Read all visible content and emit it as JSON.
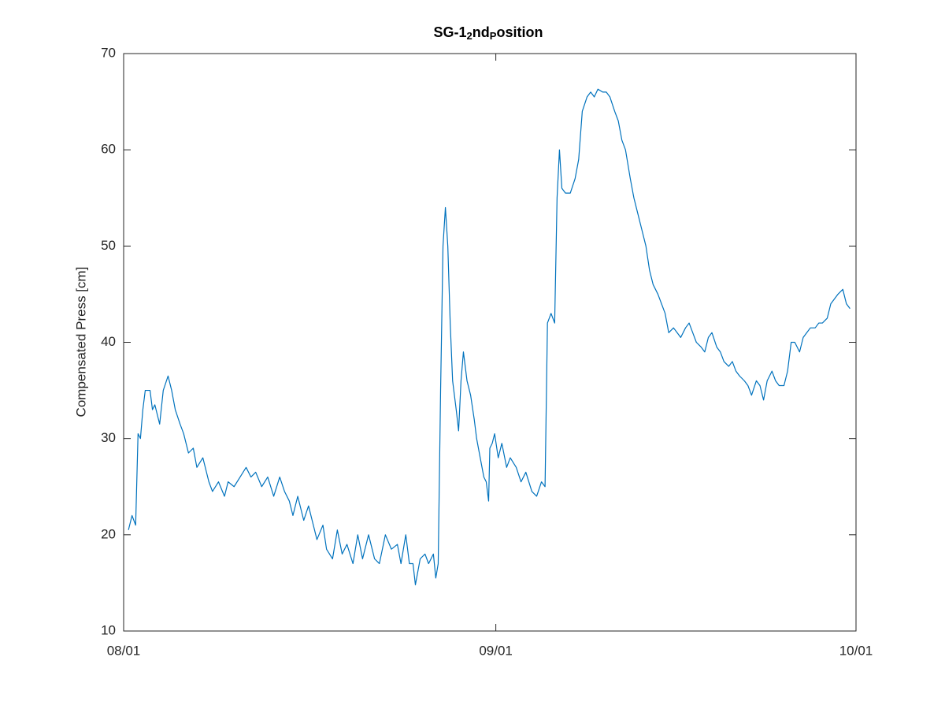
{
  "chart_data": {
    "type": "line",
    "title_parts": [
      {
        "text": "SG-1"
      },
      {
        "text": "2",
        "subscript": true
      },
      {
        "text": "nd"
      },
      {
        "text": "P",
        "subscript": true
      },
      {
        "text": "osition"
      }
    ],
    "y_label": "Compensated Press [cm]",
    "xlim": [
      0,
      61
    ],
    "xticks": [
      {
        "value": 0,
        "label": "08/01"
      },
      {
        "value": 31,
        "label": "09/01"
      },
      {
        "value": 61,
        "label": "10/01"
      }
    ],
    "ylim": [
      10,
      70
    ],
    "yticks": [
      10,
      20,
      30,
      40,
      50,
      60,
      70
    ],
    "grid": false,
    "series": [
      {
        "color": "#0072bd",
        "x": [
          0.4,
          0.7,
          1.0,
          1.2,
          1.4,
          1.6,
          1.8,
          2.2,
          2.4,
          2.6,
          3.0,
          3.3,
          3.7,
          4.0,
          4.3,
          4.7,
          5.0,
          5.4,
          5.8,
          6.1,
          6.6,
          7.1,
          7.4,
          7.9,
          8.4,
          8.7,
          9.2,
          9.7,
          10.2,
          10.6,
          11.0,
          11.5,
          12.0,
          12.5,
          13.0,
          13.4,
          13.8,
          14.1,
          14.5,
          15.0,
          15.4,
          15.8,
          16.1,
          16.6,
          16.9,
          17.4,
          17.8,
          18.2,
          18.6,
          19.1,
          19.5,
          19.9,
          20.4,
          20.9,
          21.3,
          21.8,
          22.3,
          22.8,
          23.1,
          23.5,
          23.8,
          24.1,
          24.3,
          24.7,
          25.1,
          25.4,
          25.8,
          26.0,
          26.2,
          26.4,
          26.6,
          26.8,
          27.0,
          27.2,
          27.4,
          27.7,
          27.9,
          28.1,
          28.3,
          28.6,
          28.9,
          29.2,
          29.4,
          29.7,
          30.0,
          30.2,
          30.4,
          30.5,
          30.7,
          30.9,
          31.2,
          31.5,
          31.9,
          32.2,
          32.7,
          33.1,
          33.5,
          34.0,
          34.4,
          34.8,
          35.1,
          35.3,
          35.6,
          35.9,
          36.1,
          36.3,
          36.5,
          36.8,
          37.2,
          37.6,
          37.9,
          38.2,
          38.6,
          38.9,
          39.2,
          39.5,
          39.9,
          40.2,
          40.5,
          40.9,
          41.2,
          41.5,
          41.8,
          42.2,
          42.5,
          42.8,
          43.1,
          43.5,
          43.8,
          44.1,
          44.5,
          44.8,
          45.1,
          45.4,
          45.8,
          46.1,
          46.4,
          46.8,
          47.1,
          47.4,
          47.7,
          48.1,
          48.4,
          48.7,
          49.0,
          49.4,
          49.7,
          50.0,
          50.4,
          50.7,
          51.0,
          51.3,
          51.7,
          52.0,
          52.3,
          52.7,
          53.0,
          53.3,
          53.6,
          54.0,
          54.3,
          54.6,
          55.0,
          55.3,
          55.6,
          55.9,
          56.3,
          56.6,
          56.9,
          57.2,
          57.6,
          57.9,
          58.2,
          58.6,
          58.9,
          59.2,
          59.5,
          59.9,
          60.2,
          60.5
        ],
        "values": [
          20.5,
          22,
          21,
          30.5,
          30,
          33,
          35,
          35,
          33,
          33.5,
          31.5,
          35,
          36.5,
          35,
          33,
          31.5,
          30.5,
          28.5,
          29,
          27,
          28,
          25.5,
          24.5,
          25.5,
          24,
          25.5,
          25,
          26,
          27,
          26,
          26.5,
          25,
          26,
          24,
          26,
          24.5,
          23.5,
          22,
          24,
          21.5,
          23,
          21,
          19.5,
          21,
          18.5,
          17.5,
          20.5,
          18,
          19,
          17,
          20,
          17.5,
          20,
          17.5,
          17,
          20,
          18.5,
          19,
          17,
          20,
          17,
          17,
          14.8,
          17.5,
          18,
          17,
          18,
          15.5,
          17,
          35,
          50,
          54,
          50,
          42,
          36,
          33,
          30.8,
          36,
          39,
          36,
          34.5,
          32,
          30,
          28,
          26,
          25.5,
          23.5,
          29,
          29.5,
          30.5,
          28,
          29.5,
          27,
          28,
          27,
          25.5,
          26.5,
          24.5,
          24,
          25.5,
          25,
          42,
          43,
          42,
          55,
          60,
          56,
          55.5,
          55.5,
          57,
          59,
          64,
          65.5,
          66,
          65.5,
          66.3,
          66,
          66,
          65.5,
          64,
          63,
          61,
          60,
          57,
          55,
          53.5,
          52,
          50,
          47.5,
          46,
          45,
          44,
          43,
          41,
          41.5,
          41,
          40.5,
          41.5,
          42,
          41,
          40,
          39.5,
          39,
          40.5,
          41,
          39.5,
          39,
          38,
          37.5,
          38,
          37,
          36.5,
          36,
          35.5,
          34.5,
          36,
          35.5,
          34,
          36,
          37,
          36,
          35.5,
          35.5,
          37,
          40,
          40,
          39,
          40.5,
          41,
          41.5,
          41.5,
          42,
          42,
          42.5,
          44,
          44.5,
          45,
          45.5,
          44,
          43.5
        ]
      }
    ]
  }
}
